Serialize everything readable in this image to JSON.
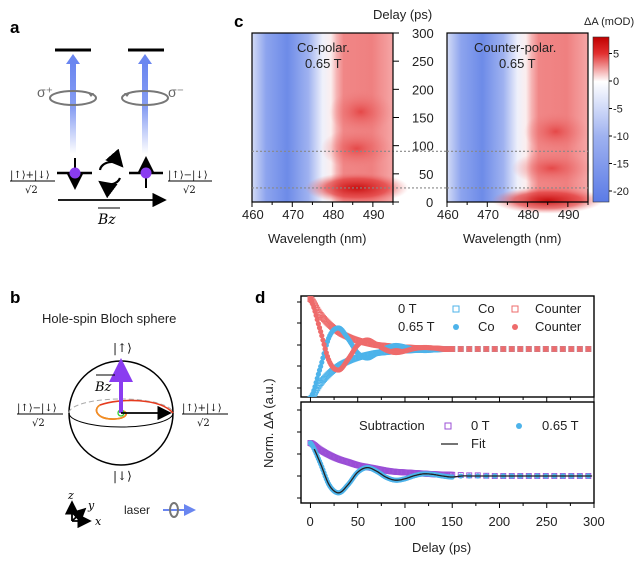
{
  "panel_labels": {
    "a": "a",
    "b": "b",
    "c": "c",
    "d": "d"
  },
  "panel_a": {
    "sigma_plus": "σ⁺",
    "sigma_minus": "σ⁻",
    "state_plus_num": "|↑⟩+|↓⟩",
    "state_minus_num": "|↑⟩−|↓⟩",
    "denominator": "√2",
    "field_label": "Bz",
    "colors": {
      "arrow": "#6a86f0",
      "spin_dot": "#8a3cf0"
    }
  },
  "panel_b": {
    "title": "Hole-spin Bloch sphere",
    "up_state": "|↑⟩",
    "down_state": "|↓⟩",
    "left_num": "|↑⟩−|↓⟩",
    "right_num": "|↑⟩+|↓⟩",
    "denominator": "√2",
    "field_label": "Bz",
    "axes": {
      "z": "z",
      "y": "y",
      "x": "x"
    },
    "laser_label": "laser"
  },
  "chart_data": [
    {
      "type": "heatmap",
      "panel": "c-left",
      "annotation": [
        "Co-polar.",
        "0.65 T"
      ],
      "xlabel": "Wavelength (nm)",
      "ylabel": "Delay (ps)",
      "xlim": [
        460,
        495
      ],
      "ylim": [
        0,
        300
      ],
      "xticks": [
        460,
        470,
        480,
        490
      ],
      "yticks": [
        0,
        50,
        100,
        150,
        200,
        250,
        300
      ],
      "dashed_lines_delay": [
        25,
        90
      ]
    },
    {
      "type": "heatmap",
      "panel": "c-right",
      "annotation": [
        "Counter-polar.",
        "0.65 T"
      ],
      "xlabel": "Wavelength (nm)",
      "xlim": [
        460,
        495
      ],
      "ylim": [
        0,
        300
      ],
      "xticks": [
        460,
        470,
        480,
        490
      ],
      "dashed_lines_delay": [
        25,
        90
      ]
    },
    {
      "type": "colorbar",
      "title": "ΔA (mOD)",
      "range": [
        -22,
        8
      ],
      "ticks": [
        5,
        0,
        -5,
        -10,
        -15,
        -20
      ],
      "colors": {
        "max": "#c00000",
        "mid": "#ffffff",
        "min": "#5b7be6"
      }
    },
    {
      "type": "scatter",
      "panel": "d-top",
      "xlim": [
        -10,
        300
      ],
      "ylim": [
        -1.1,
        1.1
      ],
      "x": [
        0,
        10,
        20,
        30,
        40,
        50,
        60,
        70,
        80,
        90,
        100,
        110,
        120,
        130,
        140,
        150,
        160,
        170,
        180,
        190,
        200,
        210,
        220,
        230,
        240,
        250,
        260,
        270,
        280,
        290,
        300
      ],
      "legend": {
        "row1": "0 T",
        "row2": "0.65 T",
        "co": "Co",
        "counter": "Counter"
      },
      "series": [
        {
          "name": "0 T Co",
          "marker": "open-square",
          "color": "#4db3ea",
          "values": [
            -1,
            -0.7,
            -0.49,
            -0.34,
            -0.24,
            -0.17,
            -0.12,
            -0.08,
            -0.06,
            -0.04,
            -0.03,
            -0.02,
            -0.01,
            -0.01,
            0,
            0,
            0,
            0,
            0,
            0,
            0,
            0,
            0,
            0,
            0,
            0,
            0,
            0,
            0,
            0,
            0
          ]
        },
        {
          "name": "0 T Counter",
          "marker": "open-square",
          "color": "#ee6b6b",
          "values": [
            1,
            0.7,
            0.49,
            0.34,
            0.24,
            0.17,
            0.12,
            0.08,
            0.06,
            0.04,
            0.03,
            0.02,
            0.01,
            0.01,
            0,
            0,
            0,
            0,
            0,
            0,
            0,
            0,
            0,
            0,
            0,
            0,
            0,
            0,
            0,
            0,
            0
          ]
        },
        {
          "name": "0.65 T Co",
          "marker": "filled-circle",
          "color": "#4db3ea",
          "values": [
            -1,
            -0.4,
            0.25,
            0.42,
            0.2,
            -0.08,
            -0.18,
            -0.09,
            0.02,
            0.07,
            0.04,
            -0.01,
            -0.03,
            -0.02,
            0,
            0,
            0,
            0,
            0,
            0,
            0,
            0,
            0,
            0,
            0,
            0,
            0,
            0,
            0,
            0,
            0
          ]
        },
        {
          "name": "0.65 T Counter",
          "marker": "filled-circle",
          "color": "#ee6b6b",
          "values": [
            1,
            0.4,
            -0.25,
            -0.42,
            -0.2,
            0.08,
            0.18,
            0.09,
            -0.02,
            -0.07,
            -0.04,
            0.01,
            0.03,
            0.02,
            0,
            0,
            0,
            0,
            0,
            0,
            0,
            0,
            0,
            0,
            0,
            0,
            0,
            0,
            0,
            0,
            0
          ]
        }
      ]
    },
    {
      "type": "scatter",
      "panel": "d-bottom",
      "xlabel": "Delay (ps)",
      "ylabel": "Norm. ΔA (a.u.)",
      "xlim": [
        -10,
        300
      ],
      "ylim": [
        -0.5,
        1.1
      ],
      "xticks": [
        0,
        50,
        100,
        150,
        200,
        250,
        300
      ],
      "x": [
        0,
        10,
        20,
        30,
        40,
        50,
        60,
        70,
        80,
        90,
        100,
        110,
        120,
        130,
        140,
        150,
        160,
        170,
        180,
        190,
        200,
        210,
        220,
        230,
        240,
        250,
        260,
        270,
        280,
        290,
        300
      ],
      "legend": {
        "title": "Subtraction",
        "s1": "0 T",
        "s2": "0.65 T",
        "fit": "Fit"
      },
      "series": [
        {
          "name": "0 T",
          "marker": "open-square",
          "color": "#9b4fd6",
          "values": [
            0.55,
            0.44,
            0.35,
            0.28,
            0.23,
            0.18,
            0.15,
            0.12,
            0.09,
            0.07,
            0.06,
            0.05,
            0.04,
            0.03,
            0.025,
            0.02,
            0.015,
            0.01,
            0.01,
            0,
            0,
            0,
            0,
            0,
            0,
            0,
            0,
            0,
            0,
            0,
            0
          ]
        },
        {
          "name": "0.65 T",
          "marker": "filled-circle",
          "color": "#4db3ea",
          "values": [
            0.55,
            0.23,
            -0.155,
            -0.28,
            -0.14,
            0.063,
            0.14,
            0.08,
            -0.02,
            -0.07,
            -0.046,
            0.006,
            0.036,
            0.026,
            0,
            -0.017,
            0,
            0,
            0,
            0,
            0,
            0,
            0,
            0,
            0,
            0,
            0,
            0,
            0,
            0,
            0
          ]
        },
        {
          "name": "Fit",
          "marker": "line",
          "color": "#222222"
        }
      ]
    }
  ]
}
